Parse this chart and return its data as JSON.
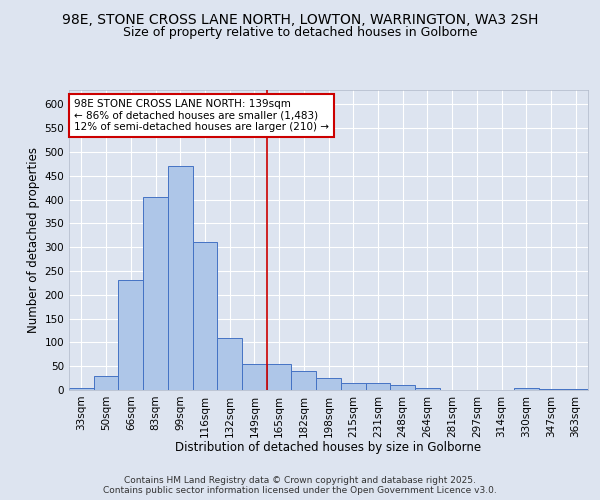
{
  "title_line1": "98E, STONE CROSS LANE NORTH, LOWTON, WARRINGTON, WA3 2SH",
  "title_line2": "Size of property relative to detached houses in Golborne",
  "xlabel": "Distribution of detached houses by size in Golborne",
  "ylabel": "Number of detached properties",
  "categories": [
    "33sqm",
    "50sqm",
    "66sqm",
    "83sqm",
    "99sqm",
    "116sqm",
    "132sqm",
    "149sqm",
    "165sqm",
    "182sqm",
    "198sqm",
    "215sqm",
    "231sqm",
    "248sqm",
    "264sqm",
    "281sqm",
    "297sqm",
    "314sqm",
    "330sqm",
    "347sqm",
    "363sqm"
  ],
  "values": [
    5,
    30,
    230,
    405,
    470,
    310,
    110,
    55,
    55,
    40,
    25,
    15,
    15,
    10,
    4,
    0,
    0,
    0,
    4,
    2,
    3
  ],
  "bar_color": "#aec6e8",
  "bar_edge_color": "#4472c4",
  "annotation_text": "98E STONE CROSS LANE NORTH: 139sqm\n← 86% of detached houses are smaller (1,483)\n12% of semi-detached houses are larger (210) →",
  "annotation_box_color": "#ffffff",
  "annotation_box_edge_color": "#cc0000",
  "vline_color": "#cc0000",
  "vline_x_index": 7.5,
  "ylim": [
    0,
    630
  ],
  "yticks": [
    0,
    50,
    100,
    150,
    200,
    250,
    300,
    350,
    400,
    450,
    500,
    550,
    600
  ],
  "background_color": "#dde4f0",
  "footer_text": "Contains HM Land Registry data © Crown copyright and database right 2025.\nContains public sector information licensed under the Open Government Licence v3.0.",
  "title_fontsize": 10,
  "subtitle_fontsize": 9,
  "axis_label_fontsize": 8.5,
  "tick_fontsize": 7.5,
  "annotation_fontsize": 7.5,
  "footer_fontsize": 6.5
}
